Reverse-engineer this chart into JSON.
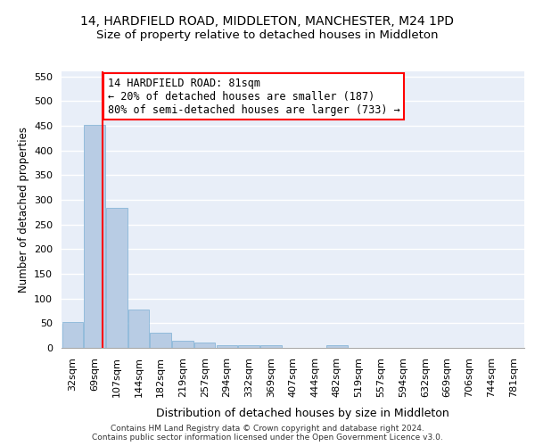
{
  "title1": "14, HARDFIELD ROAD, MIDDLETON, MANCHESTER, M24 1PD",
  "title2": "Size of property relative to detached houses in Middleton",
  "xlabel": "Distribution of detached houses by size in Middleton",
  "ylabel": "Number of detached properties",
  "footer1": "Contains HM Land Registry data © Crown copyright and database right 2024.",
  "footer2": "Contains public sector information licensed under the Open Government Licence v3.0.",
  "categories": [
    "32sqm",
    "69sqm",
    "107sqm",
    "144sqm",
    "182sqm",
    "219sqm",
    "257sqm",
    "294sqm",
    "332sqm",
    "369sqm",
    "407sqm",
    "444sqm",
    "482sqm",
    "519sqm",
    "557sqm",
    "594sqm",
    "632sqm",
    "669sqm",
    "706sqm",
    "744sqm",
    "781sqm"
  ],
  "values": [
    53,
    452,
    284,
    78,
    30,
    15,
    10,
    5,
    5,
    6,
    0,
    0,
    6,
    0,
    0,
    0,
    0,
    0,
    0,
    0,
    0
  ],
  "bar_color": "#b8cce4",
  "bar_edge_color": "#7bafd4",
  "annotation_text": "14 HARDFIELD ROAD: 81sqm\n← 20% of detached houses are smaller (187)\n80% of semi-detached houses are larger (733) →",
  "annotation_box_color": "white",
  "annotation_box_edge": "red",
  "ylim": [
    0,
    560
  ],
  "yticks": [
    0,
    50,
    100,
    150,
    200,
    250,
    300,
    350,
    400,
    450,
    500,
    550
  ],
  "background_color": "#e8eef8",
  "grid_color": "white",
  "title1_fontsize": 10,
  "title2_fontsize": 9.5,
  "xlabel_fontsize": 9,
  "ylabel_fontsize": 8.5,
  "tick_fontsize": 8,
  "annotation_fontsize": 8.5,
  "redline_x": 1.35
}
